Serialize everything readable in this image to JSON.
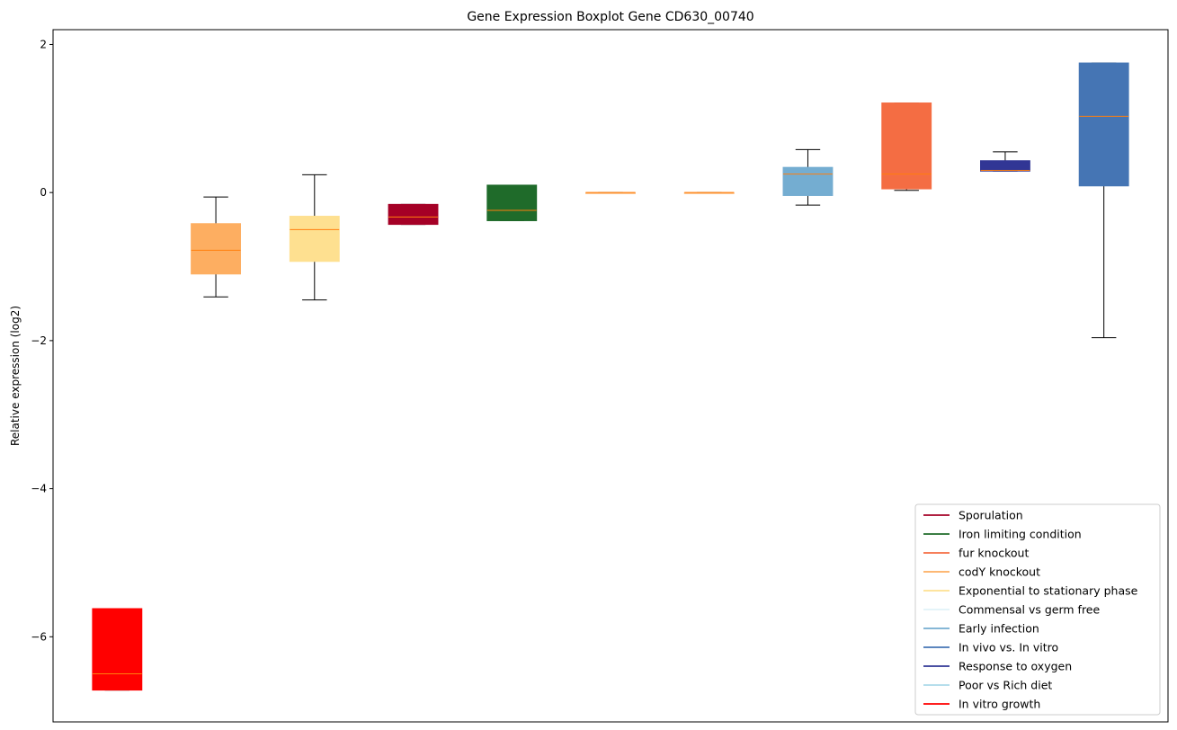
{
  "chart_data": {
    "type": "boxplot",
    "title": "Gene Expression Boxplot Gene CD630_00740",
    "xlabel": "",
    "ylabel": "Relative expression (log2)",
    "ylim": [
      -7.15,
      2.2
    ],
    "yticks": [
      2,
      0,
      -2,
      -4,
      -6
    ],
    "ytick_labels": [
      "2",
      "0",
      "−2",
      "−4",
      "−6"
    ],
    "grid": false,
    "legend_position": "lower right",
    "median_color": "#ff7f0e",
    "boxes": [
      {
        "color": "#ff0000",
        "q1": -6.72,
        "median": -6.5,
        "q3": -5.62,
        "whisker_low": -6.72,
        "whisker_high": -5.62
      },
      {
        "color": "#fdae61",
        "q1": -1.1,
        "median": -0.78,
        "q3": -0.42,
        "whisker_low": -1.41,
        "whisker_high": -0.06
      },
      {
        "color": "#fee090",
        "q1": -0.93,
        "median": -0.5,
        "q3": -0.32,
        "whisker_low": -1.45,
        "whisker_high": 0.24
      },
      {
        "color": "#a50026",
        "q1": -0.43,
        "median": -0.33,
        "q3": -0.16,
        "whisker_low": -0.43,
        "whisker_high": -0.16
      },
      {
        "color": "#1f6b2a",
        "q1": -0.38,
        "median": -0.24,
        "q3": 0.1,
        "whisker_low": -0.38,
        "whisker_high": 0.1
      },
      {
        "color": "#fdae61",
        "q1": 0.0,
        "median": 0.0,
        "q3": 0.0,
        "whisker_low": 0.0,
        "whisker_high": 0.0
      },
      {
        "color": "#fdae61",
        "q1": 0.0,
        "median": 0.0,
        "q3": 0.0,
        "whisker_low": 0.0,
        "whisker_high": 0.0
      },
      {
        "color": "#74add1",
        "q1": -0.04,
        "median": 0.25,
        "q3": 0.34,
        "whisker_low": -0.17,
        "whisker_high": 0.58
      },
      {
        "color": "#f46d43",
        "q1": 0.05,
        "median": 0.25,
        "q3": 1.21,
        "whisker_low": 0.03,
        "whisker_high": 1.21
      },
      {
        "color": "#313695",
        "q1": 0.29,
        "median": 0.3,
        "q3": 0.43,
        "whisker_low": 0.29,
        "whisker_high": 0.55
      },
      {
        "color": "#4575b4",
        "q1": 0.09,
        "median": 1.03,
        "q3": 1.75,
        "whisker_low": -1.96,
        "whisker_high": 1.75
      }
    ],
    "legend": [
      {
        "label": "Sporulation",
        "color": "#a50026"
      },
      {
        "label": "Iron limiting condition",
        "color": "#1f6b2a"
      },
      {
        "label": "fur knockout",
        "color": "#f46d43"
      },
      {
        "label": "codY knockout",
        "color": "#fdae61"
      },
      {
        "label": "Exponential to stationary phase",
        "color": "#fee090"
      },
      {
        "label": "Commensal vs germ free",
        "color": "#e0f3f8"
      },
      {
        "label": "Early infection",
        "color": "#74add1"
      },
      {
        "label": "In vivo vs. In vitro",
        "color": "#4575b4"
      },
      {
        "label": "Response to oxygen",
        "color": "#313695"
      },
      {
        "label": "Poor vs Rich diet",
        "color": "#abd9e9"
      },
      {
        "label": "In vitro growth",
        "color": "#ff0000"
      }
    ]
  }
}
